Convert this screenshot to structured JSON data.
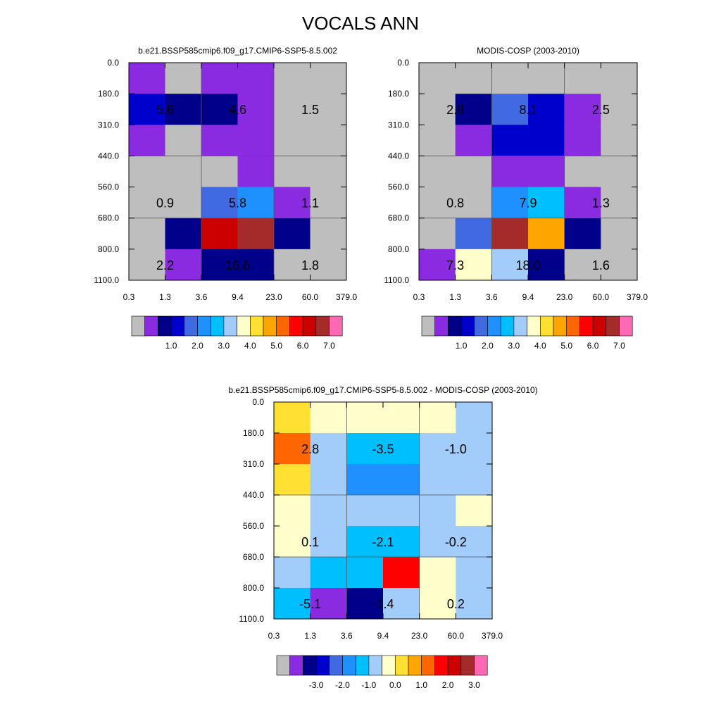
{
  "title": "VOCALS ANN",
  "colors": {
    "abs": [
      "#bebebe",
      "#8a2be2",
      "#00008b",
      "#0000cd",
      "#4169e1",
      "#1e90ff",
      "#00bfff",
      "#a2cdfa",
      "#ffffcc",
      "#ffe033",
      "#ffa500",
      "#ff6600",
      "#ff0000",
      "#cd0000",
      "#a52a2a",
      "#ff69b4"
    ],
    "diff": [
      "#bebebe",
      "#8a2be2",
      "#00008b",
      "#0000cd",
      "#4169e1",
      "#1e90ff",
      "#00bfff",
      "#a2cdfa",
      "#ffffcc",
      "#ffe033",
      "#ffa500",
      "#ff6600",
      "#ff0000",
      "#cd0000",
      "#a52a2a",
      "#ff69b4"
    ]
  },
  "chart_data": [
    {
      "type": "heatmap",
      "title": "b.e21.BSSP585cmip6.f09_g17.CMIP6-SSP5-8.5.002",
      "x_ticks": [
        "0.3",
        "1.3",
        "3.6",
        "9.4",
        "23.0",
        "60.0",
        "379.0"
      ],
      "y_ticks": [
        "0.0",
        "180.0",
        "310.0",
        "440.0",
        "560.0",
        "680.0",
        "800.0",
        "1100.0"
      ],
      "cells": [
        [
          1,
          0,
          1,
          1,
          0,
          0
        ],
        [
          3,
          2,
          2,
          1,
          0,
          0
        ],
        [
          1,
          0,
          1,
          1,
          0,
          0
        ],
        [
          0,
          0,
          0,
          1,
          0,
          0
        ],
        [
          0,
          0,
          4,
          5,
          1,
          0
        ],
        [
          0,
          2,
          13,
          14,
          2,
          0
        ],
        [
          0,
          1,
          2,
          2,
          0,
          0
        ]
      ],
      "labels": [
        {
          "text": "5.6",
          "col": 0,
          "row": 1
        },
        {
          "text": "4.6",
          "col": 2,
          "row": 1
        },
        {
          "text": "1.5",
          "col": 4,
          "row": 1
        },
        {
          "text": "0.9",
          "col": 0,
          "row": 4
        },
        {
          "text": "5.8",
          "col": 2,
          "row": 4
        },
        {
          "text": "1.1",
          "col": 4,
          "row": 4
        },
        {
          "text": "2.2",
          "col": 0,
          "row": 6
        },
        {
          "text": "16.6",
          "col": 2,
          "row": 6
        },
        {
          "text": "1.8",
          "col": 4,
          "row": 6
        }
      ],
      "legend_labels": [
        "1.0",
        "2.0",
        "3.0",
        "4.0",
        "5.0",
        "6.0",
        "7.0"
      ],
      "palette": "abs"
    },
    {
      "type": "heatmap",
      "title": "MODIS-COSP (2003-2010)",
      "x_ticks": [
        "0.3",
        "1.3",
        "3.6",
        "9.4",
        "23.0",
        "60.0",
        "379.0"
      ],
      "y_ticks": [
        "0.0",
        "180.0",
        "310.0",
        "440.0",
        "560.0",
        "680.0",
        "800.0",
        "1100.0"
      ],
      "cells": [
        [
          0,
          0,
          0,
          0,
          0,
          0
        ],
        [
          0,
          2,
          4,
          3,
          1,
          0
        ],
        [
          0,
          1,
          3,
          3,
          1,
          0
        ],
        [
          0,
          0,
          1,
          1,
          0,
          0
        ],
        [
          0,
          0,
          5,
          6,
          1,
          0
        ],
        [
          0,
          4,
          14,
          10,
          2,
          0
        ],
        [
          1,
          8,
          7,
          2,
          0,
          0
        ]
      ],
      "labels": [
        {
          "text": "2.8",
          "col": 0,
          "row": 1
        },
        {
          "text": "8.1",
          "col": 2,
          "row": 1
        },
        {
          "text": "2.5",
          "col": 4,
          "row": 1
        },
        {
          "text": "0.8",
          "col": 0,
          "row": 4
        },
        {
          "text": "7.9",
          "col": 2,
          "row": 4
        },
        {
          "text": "1.3",
          "col": 4,
          "row": 4
        },
        {
          "text": "7.3",
          "col": 0,
          "row": 6
        },
        {
          "text": "18.0",
          "col": 2,
          "row": 6
        },
        {
          "text": "1.6",
          "col": 4,
          "row": 6
        }
      ],
      "legend_labels": [
        "1.0",
        "2.0",
        "3.0",
        "4.0",
        "5.0",
        "6.0",
        "7.0"
      ],
      "palette": "abs"
    },
    {
      "type": "heatmap",
      "title": "b.e21.BSSP585cmip6.f09_g17.CMIP6-SSP5-8.5.002 - MODIS-COSP (2003-2010)",
      "x_ticks": [
        "0.3",
        "1.3",
        "3.6",
        "9.4",
        "23.0",
        "60.0",
        "379.0"
      ],
      "y_ticks": [
        "0.0",
        "180.0",
        "310.0",
        "440.0",
        "560.0",
        "680.0",
        "800.0",
        "1100.0"
      ],
      "cells": [
        [
          9,
          8,
          8,
          8,
          8,
          7
        ],
        [
          11,
          7,
          6,
          6,
          7,
          7
        ],
        [
          9,
          7,
          5,
          5,
          7,
          7
        ],
        [
          8,
          7,
          7,
          7,
          7,
          8
        ],
        [
          8,
          7,
          6,
          6,
          7,
          7
        ],
        [
          7,
          6,
          6,
          12,
          8,
          7
        ],
        [
          6,
          1,
          2,
          7,
          8,
          7
        ]
      ],
      "labels": [
        {
          "text": "2.8",
          "col": 0,
          "row": 1
        },
        {
          "text": "-3.5",
          "col": 2,
          "row": 1
        },
        {
          "text": "-1.0",
          "col": 4,
          "row": 1
        },
        {
          "text": "0.1",
          "col": 0,
          "row": 4
        },
        {
          "text": "-2.1",
          "col": 2,
          "row": 4
        },
        {
          "text": "-0.2",
          "col": 4,
          "row": 4
        },
        {
          "text": "-5.1",
          "col": 0,
          "row": 6
        },
        {
          "text": "-1.4",
          "col": 2,
          "row": 6
        },
        {
          "text": "0.2",
          "col": 4,
          "row": 6
        }
      ],
      "legend_labels": [
        "-3.0",
        "-2.0",
        "-1.0",
        "0.0",
        "1.0",
        "2.0",
        "3.0"
      ],
      "palette": "diff"
    }
  ]
}
